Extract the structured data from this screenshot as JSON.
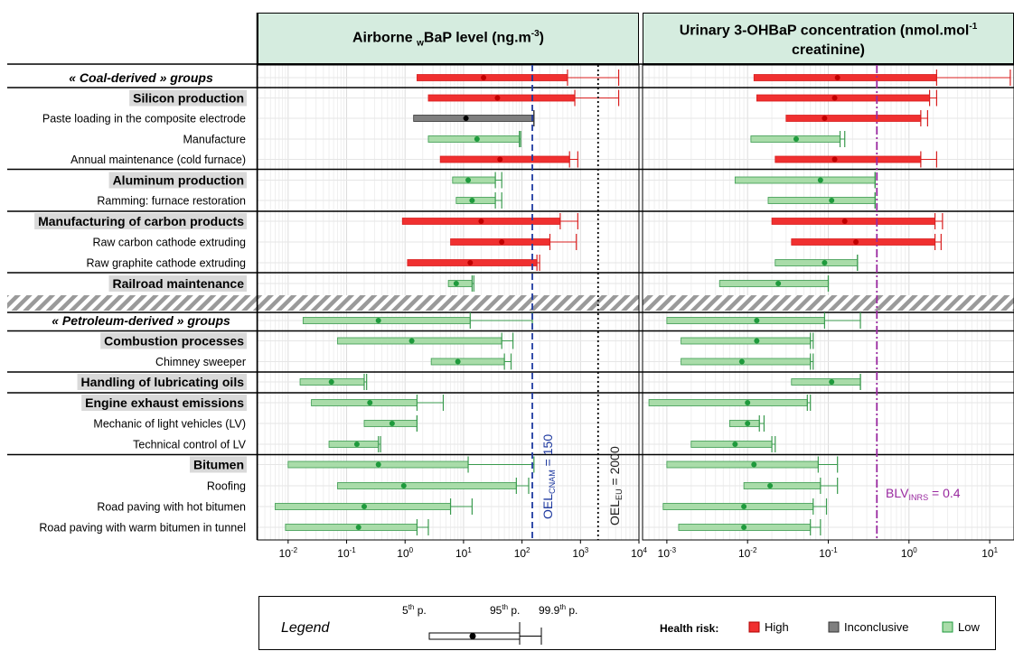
{
  "panels": [
    {
      "title_main": "Airborne ",
      "title_sub": "w",
      "title_rest": "BaP level (ng.m",
      "title_sup": "-3",
      "title_end": ")"
    },
    {
      "title_main": "Urinary 3-OHBaP concentration (nmol.mol",
      "title_sup": "-1",
      "title_line2": "creatinine)"
    }
  ],
  "colors": {
    "High": "#f03030",
    "Inconclusive": "#7f7f7f",
    "Low": "#a9dca9",
    "low_dot": "#1e9a3c",
    "oel_cnam": "#1f3aa0",
    "blv": "#9a2aa0",
    "header_bg": "#d5ecdf"
  },
  "chart_data": [
    {
      "type": "range-bar",
      "title": "Airborne wBaP level (ng.m-3)",
      "xscale": "log",
      "xlim": [
        0.003,
        10000
      ],
      "xticks": [
        "10^-2",
        "10^-1",
        "10^0",
        "10^1",
        "10^2",
        "10^3",
        "10^4"
      ],
      "reference_lines": [
        {
          "label": "OEL_CNAM = 150",
          "value": 150,
          "style": "dashed",
          "color": "#1f3aa0"
        },
        {
          "label": "OEL_EU = 2000",
          "value": 2000,
          "style": "dotted",
          "color": "#000000"
        }
      ],
      "rows": [
        {
          "group": "« Coal-derived » groups",
          "risk": "High",
          "p5": 1.6,
          "median": 22,
          "p95": 600,
          "p999": 4500
        },
        {
          "group": "Silicon production",
          "risk": "High",
          "p5": 2.5,
          "median": 38,
          "p95": 800,
          "p999": 4500
        },
        {
          "group": "Paste loading in the composite electrode",
          "risk": "Inconclusive",
          "p5": 1.4,
          "median": 11,
          "p95": 160,
          "p999": 160
        },
        {
          "group": "Manufacture",
          "risk": "Low",
          "p5": 2.5,
          "median": 17,
          "p95": 90,
          "p999": 95
        },
        {
          "group": "Annual maintenance (cold furnace)",
          "risk": "High",
          "p5": 4,
          "median": 42,
          "p95": 650,
          "p999": 900
        },
        {
          "group": "Aluminum production",
          "risk": "Low",
          "p5": 6.5,
          "median": 12,
          "p95": 35,
          "p999": 45
        },
        {
          "group": "Ramming: furnace restoration",
          "risk": "Low",
          "p5": 7.5,
          "median": 14,
          "p95": 35,
          "p999": 45
        },
        {
          "group": "Manufacturing of carbon products",
          "risk": "High",
          "p5": 0.9,
          "median": 20,
          "p95": 450,
          "p999": 900
        },
        {
          "group": "Raw carbon cathode extruding",
          "risk": "High",
          "p5": 6,
          "median": 45,
          "p95": 300,
          "p999": 850
        },
        {
          "group": "Raw graphite cathode extruding",
          "risk": "High",
          "p5": 1.1,
          "median": 13,
          "p95": 180,
          "p999": 200
        },
        {
          "group": "Railroad maintenance",
          "risk": "Low",
          "p5": 5.5,
          "median": 7.5,
          "p95": 14,
          "p999": 15
        },
        {
          "group": "« Petroleum-derived » groups",
          "risk": "Low",
          "p5": 0.018,
          "median": 0.35,
          "p95": 13,
          "p999": 150
        },
        {
          "group": "Combustion processes",
          "risk": "Low",
          "p5": 0.07,
          "median": 1.3,
          "p95": 45,
          "p999": 70
        },
        {
          "group": "Chimney sweeper",
          "risk": "Low",
          "p5": 2.8,
          "median": 8,
          "p95": 50,
          "p999": 65
        },
        {
          "group": "Handling of lubricating oils",
          "risk": "Low",
          "p5": 0.016,
          "median": 0.055,
          "p95": 0.2,
          "p999": 0.22
        },
        {
          "group": "Engine exhaust emissions",
          "risk": "Low",
          "p5": 0.025,
          "median": 0.25,
          "p95": 1.6,
          "p999": 4.5
        },
        {
          "group": "Mechanic of light vehicles (LV)",
          "risk": "Low",
          "p5": 0.2,
          "median": 0.6,
          "p95": 1.6,
          "p999": 1.6
        },
        {
          "group": "Technical control of LV",
          "risk": "Low",
          "p5": 0.05,
          "median": 0.15,
          "p95": 0.35,
          "p999": 0.38
        },
        {
          "group": "Bitumen",
          "risk": "Low",
          "p5": 0.01,
          "median": 0.35,
          "p95": 12,
          "p999": 160
        },
        {
          "group": "Roofing",
          "risk": "Low",
          "p5": 0.07,
          "median": 0.95,
          "p95": 80,
          "p999": 130
        },
        {
          "group": "Road paving with hot bitumen",
          "risk": "Low",
          "p5": 0.006,
          "median": 0.2,
          "p95": 6,
          "p999": 14
        },
        {
          "group": "Road paving with warm bitumen in tunnel",
          "risk": "Low",
          "p5": 0.009,
          "median": 0.16,
          "p95": 1.6,
          "p999": 2.5
        }
      ]
    },
    {
      "type": "range-bar",
      "title": "Urinary 3-OHBaP concentration (nmol.mol-1 creatinine)",
      "xscale": "log",
      "xlim": [
        0.0005,
        20
      ],
      "xticks": [
        "10^-3",
        "10^-2",
        "10^-1",
        "10^0",
        "10^1"
      ],
      "reference_lines": [
        {
          "label": "BLV_INRS = 0.4",
          "value": 0.4,
          "style": "dash-dot",
          "color": "#9a2aa0"
        }
      ],
      "rows": [
        {
          "group": "« Coal-derived » groups",
          "risk": "High",
          "p5": 0.012,
          "median": 0.13,
          "p95": 2.2,
          "p999": 18
        },
        {
          "group": "Silicon production",
          "risk": "High",
          "p5": 0.013,
          "median": 0.12,
          "p95": 1.8,
          "p999": 2.2
        },
        {
          "group": "Paste loading in the composite electrode",
          "risk": "High",
          "p5": 0.03,
          "median": 0.09,
          "p95": 1.4,
          "p999": 1.7
        },
        {
          "group": "Manufacture",
          "risk": "Low",
          "p5": 0.011,
          "median": 0.04,
          "p95": 0.14,
          "p999": 0.16
        },
        {
          "group": "Annual maintenance (cold furnace)",
          "risk": "High",
          "p5": 0.022,
          "median": 0.12,
          "p95": 1.4,
          "p999": 2.2
        },
        {
          "group": "Aluminum production",
          "risk": "Low",
          "p5": 0.007,
          "median": 0.08,
          "p95": 0.38,
          "p999": 0.38
        },
        {
          "group": "Ramming: furnace restoration",
          "risk": "Low",
          "p5": 0.018,
          "median": 0.11,
          "p95": 0.38,
          "p999": 0.38
        },
        {
          "group": "Manufacturing of carbon products",
          "risk": "High",
          "p5": 0.02,
          "median": 0.16,
          "p95": 2.1,
          "p999": 2.6
        },
        {
          "group": "Raw carbon cathode extruding",
          "risk": "High",
          "p5": 0.035,
          "median": 0.22,
          "p95": 2.1,
          "p999": 2.5
        },
        {
          "group": "Raw graphite cathode extruding",
          "risk": "Low",
          "p5": 0.022,
          "median": 0.09,
          "p95": 0.23,
          "p999": 0.23
        },
        {
          "group": "Railroad maintenance",
          "risk": "Low",
          "p5": 0.0045,
          "median": 0.024,
          "p95": 0.1,
          "p999": 0.1
        },
        {
          "group": "« Petroleum-derived » groups",
          "risk": "Low",
          "p5": 0.001,
          "median": 0.013,
          "p95": 0.09,
          "p999": 0.25
        },
        {
          "group": "Combustion processes",
          "risk": "Low",
          "p5": 0.0015,
          "median": 0.013,
          "p95": 0.06,
          "p999": 0.065
        },
        {
          "group": "Chimney sweeper",
          "risk": "Low",
          "p5": 0.0015,
          "median": 0.0085,
          "p95": 0.06,
          "p999": 0.065
        },
        {
          "group": "Handling of lubricating oils",
          "risk": "Low",
          "p5": 0.035,
          "median": 0.11,
          "p95": 0.25,
          "p999": 0.25
        },
        {
          "group": "Engine exhaust emissions",
          "risk": "Low",
          "p5": 0.0006,
          "median": 0.01,
          "p95": 0.055,
          "p999": 0.06
        },
        {
          "group": "Mechanic of light vehicles (LV)",
          "risk": "Low",
          "p5": 0.006,
          "median": 0.01,
          "p95": 0.014,
          "p999": 0.016
        },
        {
          "group": "Technical control of LV",
          "risk": "Low",
          "p5": 0.002,
          "median": 0.007,
          "p95": 0.02,
          "p999": 0.022
        },
        {
          "group": "Bitumen",
          "risk": "Low",
          "p5": 0.001,
          "median": 0.012,
          "p95": 0.075,
          "p999": 0.13
        },
        {
          "group": "Roofing",
          "risk": "Low",
          "p5": 0.009,
          "median": 0.019,
          "p95": 0.08,
          "p999": 0.13
        },
        {
          "group": "Road paving with hot bitumen",
          "risk": "Low",
          "p5": 0.0009,
          "median": 0.009,
          "p95": 0.065,
          "p999": 0.095
        },
        {
          "group": "Road paving with warm bitumen in tunnel",
          "risk": "Low",
          "p5": 0.0014,
          "median": 0.009,
          "p95": 0.06,
          "p999": 0.08
        }
      ]
    }
  ],
  "row_labels": [
    {
      "text": "« Coal-derived » groups",
      "kind": "section"
    },
    {
      "text": "Silicon production",
      "kind": "group"
    },
    {
      "text": "Paste loading in the composite electrode",
      "kind": "sub"
    },
    {
      "text": "Manufacture",
      "kind": "sub"
    },
    {
      "text": "Annual maintenance (cold furnace)",
      "kind": "sub"
    },
    {
      "text": "Aluminum production",
      "kind": "group"
    },
    {
      "text": "Ramming: furnace restoration",
      "kind": "sub"
    },
    {
      "text": "Manufacturing of carbon products",
      "kind": "group"
    },
    {
      "text": "Raw carbon cathode extruding",
      "kind": "sub"
    },
    {
      "text": "Raw graphite cathode extruding",
      "kind": "sub"
    },
    {
      "text": "Railroad maintenance",
      "kind": "group"
    },
    {
      "text": "« Petroleum-derived » groups",
      "kind": "section"
    },
    {
      "text": "Combustion processes",
      "kind": "group"
    },
    {
      "text": "Chimney sweeper",
      "kind": "sub"
    },
    {
      "text": "Handling of lubricating oils",
      "kind": "group"
    },
    {
      "text": "Engine exhaust emissions",
      "kind": "group"
    },
    {
      "text": "Mechanic of light vehicles (LV)",
      "kind": "sub"
    },
    {
      "text": "Technical control of LV",
      "kind": "sub"
    },
    {
      "text": "Bitumen",
      "kind": "group"
    },
    {
      "text": "Roofing",
      "kind": "sub"
    },
    {
      "text": "Road paving with hot bitumen",
      "kind": "sub"
    },
    {
      "text": "Road paving with warm bitumen in tunnel",
      "kind": "sub"
    }
  ],
  "ref_labels": {
    "oel_cnam_main": "OEL",
    "oel_cnam_sub": "CNAM",
    "oel_cnam_value": " = 150",
    "oel_eu_main": "OEL",
    "oel_eu_sub": "EU",
    "oel_eu_value": " = 2000",
    "blv_main": "BLV",
    "blv_sub": "INRS",
    "blv_value": " = 0.4"
  },
  "legend": {
    "title": "Legend",
    "p5_num": "5",
    "p5_sup": "th",
    "p5_end": " p.",
    "p95_num": "95",
    "p95_sup": "th",
    "p95_end": " p.",
    "p999_num": "99.9",
    "p999_sup": "th",
    "p999_end": " p.",
    "health_risk_label": "Health risk:",
    "high": "High",
    "inconclusive": "Inconclusive",
    "low": "Low"
  }
}
